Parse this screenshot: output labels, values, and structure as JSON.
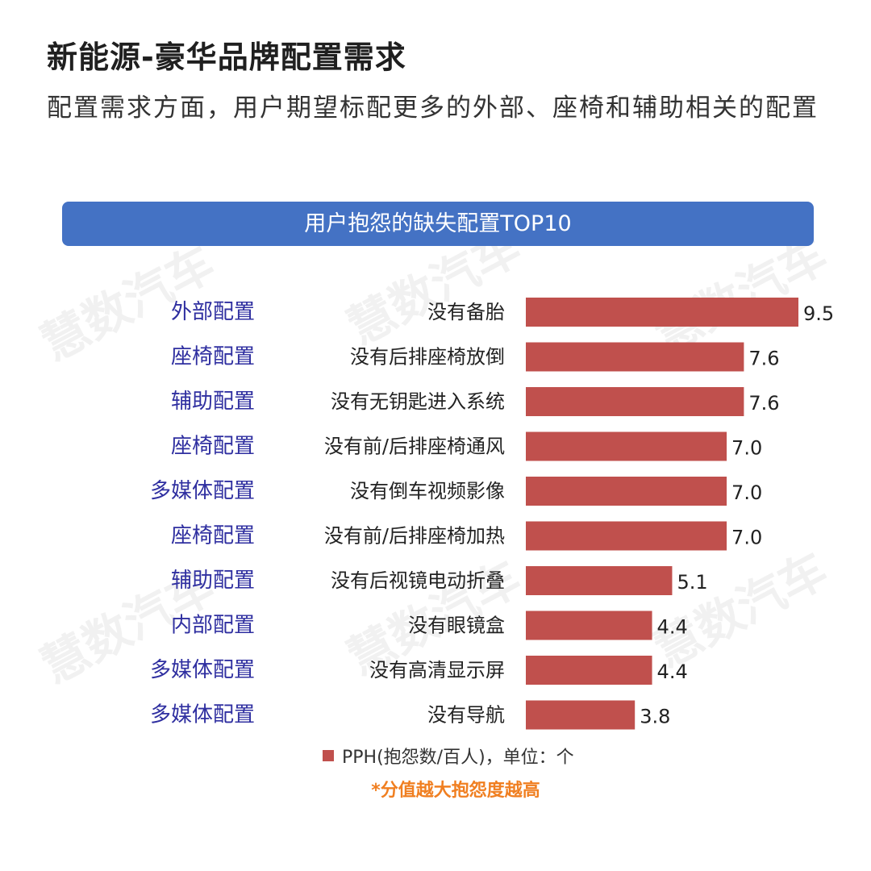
{
  "title": "新能源-豪华品牌配置需求",
  "subtitle": "配置需求方面，用户期望标配更多的外部、座椅和辅助相关的配置",
  "watermark": "慧数汽车",
  "note": "*分值越大抱怨度越高",
  "colors": {
    "bar": "#c0504d",
    "banner": "#4472c4",
    "group_label": "#2f2fa0",
    "note": "#f07f21"
  },
  "chart_data": {
    "type": "bar",
    "orientation": "horizontal",
    "title": "用户抱怨的缺失配置TOP10",
    "groups": [
      "外部配置",
      "座椅配置",
      "辅助配置",
      "座椅配置",
      "多媒体配置",
      "座椅配置",
      "辅助配置",
      "内部配置",
      "多媒体配置",
      "多媒体配置"
    ],
    "categories": [
      "没有备胎",
      "没有后排座椅放倒",
      "没有无钥匙进入系统",
      "没有前/后排座椅通风",
      "没有倒车视频影像",
      "没有前/后排座椅加热",
      "没有后视镜电动折叠",
      "没有眼镜盒",
      "没有高清显示屏",
      "没有导航"
    ],
    "series": [
      {
        "name": "PPH(抱怨数/百人)，单位：个",
        "values": [
          9.5,
          7.6,
          7.6,
          7.0,
          7.0,
          7.0,
          5.1,
          4.4,
          4.4,
          3.8
        ]
      }
    ],
    "value_labels": [
      "9.5",
      "7.6",
      "7.6",
      "7.0",
      "7.0",
      "7.0",
      "5.1",
      "4.4",
      "4.4",
      "3.8"
    ],
    "xlim": [
      0,
      9.5
    ],
    "grid": false,
    "legend_position": "bottom"
  }
}
